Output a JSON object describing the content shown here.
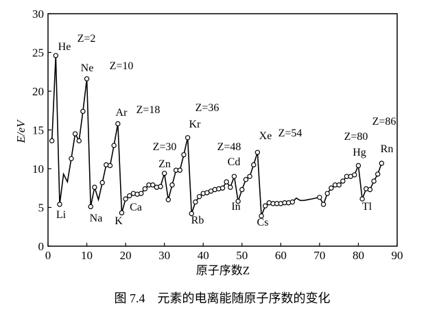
{
  "chart_data": {
    "type": "line",
    "xlabel": "原子序数Z",
    "ylabel": "E/eV",
    "xlim": [
      0,
      90
    ],
    "ylim": [
      0,
      30
    ],
    "xticks": [
      0,
      10,
      20,
      30,
      40,
      50,
      60,
      70,
      80,
      90
    ],
    "yticks": [
      0,
      5,
      10,
      15,
      20,
      25,
      30
    ],
    "grid": false,
    "series": [
      {
        "x": [
          1,
          2,
          3,
          4,
          5,
          6,
          7,
          8,
          9,
          10,
          11,
          12,
          13,
          14,
          15,
          16,
          17,
          18,
          19,
          20,
          21,
          22,
          23,
          24,
          25,
          26,
          27,
          28,
          29,
          30,
          31,
          32,
          33,
          34,
          35,
          36,
          37,
          38,
          39,
          40,
          41,
          42,
          43,
          44,
          45,
          46,
          47,
          48,
          49,
          50,
          51,
          52,
          53,
          54,
          55,
          56,
          57,
          58,
          59,
          60,
          61,
          62,
          63,
          64,
          65,
          66,
          67,
          68,
          69,
          70,
          71,
          72,
          73,
          74,
          75,
          76,
          77,
          78,
          79,
          80,
          81,
          82,
          83,
          84,
          85,
          86
        ],
        "y": [
          13.6,
          24.6,
          5.4,
          9.3,
          8.3,
          11.3,
          14.5,
          13.6,
          17.4,
          21.6,
          5.1,
          7.6,
          6.0,
          8.2,
          10.5,
          10.4,
          13.0,
          15.8,
          4.3,
          6.1,
          6.5,
          6.8,
          6.7,
          6.8,
          7.4,
          7.9,
          7.9,
          7.6,
          7.7,
          9.4,
          6.0,
          7.9,
          9.8,
          9.8,
          11.8,
          14.0,
          4.2,
          5.7,
          6.4,
          6.8,
          6.9,
          7.1,
          7.3,
          7.4,
          7.5,
          8.3,
          7.6,
          9.0,
          5.8,
          7.3,
          8.6,
          9.0,
          10.5,
          12.1,
          3.9,
          5.2,
          5.6,
          5.5,
          5.5,
          5.5,
          5.6,
          5.6,
          5.7,
          6.2,
          5.9,
          5.9,
          6.0,
          6.1,
          6.2,
          6.3,
          5.4,
          6.8,
          7.5,
          7.9,
          7.9,
          8.4,
          9.0,
          9.0,
          9.2,
          10.4,
          6.1,
          7.4,
          7.3,
          8.4,
          9.3,
          10.7
        ],
        "markers_x": [
          1,
          2,
          3,
          6,
          7,
          8,
          9,
          10,
          11,
          12,
          14,
          15,
          16,
          17,
          18,
          19,
          20,
          21,
          22,
          23,
          24,
          25,
          26,
          27,
          28,
          29,
          30,
          31,
          32,
          33,
          34,
          35,
          36,
          37,
          38,
          39,
          40,
          41,
          42,
          43,
          44,
          45,
          46,
          47,
          48,
          49,
          50,
          51,
          52,
          53,
          54,
          55,
          56,
          57,
          58,
          59,
          60,
          61,
          62,
          63,
          70,
          71,
          72,
          73,
          74,
          75,
          76,
          77,
          78,
          79,
          80,
          81,
          82,
          83,
          84,
          85,
          86
        ]
      }
    ],
    "element_labels": [
      {
        "text": "He",
        "z": 2
      },
      {
        "text": "Li",
        "z": 3
      },
      {
        "text": "Ne",
        "z": 10
      },
      {
        "text": "Na",
        "z": 11
      },
      {
        "text": "Ar",
        "z": 18
      },
      {
        "text": "K",
        "z": 19
      },
      {
        "text": "Ca",
        "z": 20
      },
      {
        "text": "Zn",
        "z": 30
      },
      {
        "text": "Kr",
        "z": 36
      },
      {
        "text": "Rb",
        "z": 37
      },
      {
        "text": "Cd",
        "z": 48
      },
      {
        "text": "In",
        "z": 49
      },
      {
        "text": "Xe",
        "z": 54
      },
      {
        "text": "Cs",
        "z": 55
      },
      {
        "text": "Hg",
        "z": 80
      },
      {
        "text": "Tl",
        "z": 81
      },
      {
        "text": "Rn",
        "z": 86
      }
    ],
    "z_annotations": [
      "Z=2",
      "Z=10",
      "Z=18",
      "Z=30",
      "Z=36",
      "Z=48",
      "Z=54",
      "Z=80",
      "Z=86"
    ]
  },
  "caption": "图 7.4　元素的电离能随原子序数的变化"
}
